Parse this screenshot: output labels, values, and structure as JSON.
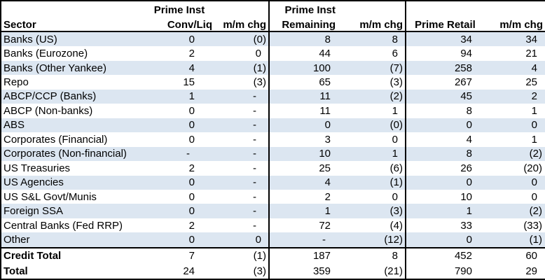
{
  "colors": {
    "stripe": "#dce6f1",
    "border": "#000000",
    "text": "#000000",
    "background": "#ffffff"
  },
  "header": {
    "sector": "Sector",
    "conv_group": "Prime Inst",
    "conv": "Conv/Liq",
    "mm1": "m/m chg",
    "remaining_group": "Prime Inst",
    "remaining": "Remaining",
    "mm2": "m/m chg",
    "retail": "Prime Retail",
    "mm3": "m/m chg"
  },
  "rows": [
    {
      "sector": "Banks (US)",
      "cells": [
        "0",
        "(0)",
        "8",
        "8",
        "34",
        "34"
      ]
    },
    {
      "sector": "Banks (Eurozone)",
      "cells": [
        "2",
        "0",
        "44",
        "6",
        "94",
        "21"
      ]
    },
    {
      "sector": "Banks (Other Yankee)",
      "cells": [
        "4",
        "(1)",
        "100",
        "(7)",
        "258",
        "4"
      ]
    },
    {
      "sector": "Repo",
      "cells": [
        "15",
        "(3)",
        "65",
        "(3)",
        "267",
        "25"
      ]
    },
    {
      "sector": "ABCP/CCP (Banks)",
      "cells": [
        "1",
        "-",
        "11",
        "(2)",
        "45",
        "2"
      ]
    },
    {
      "sector": "ABCP (Non-banks)",
      "cells": [
        "0",
        "-",
        "11",
        "1",
        "8",
        "1"
      ]
    },
    {
      "sector": "ABS",
      "cells": [
        "0",
        "-",
        "0",
        "(0)",
        "0",
        "0"
      ]
    },
    {
      "sector": "Corporates (Financial)",
      "cells": [
        "0",
        "-",
        "3",
        "0",
        "4",
        "1"
      ]
    },
    {
      "sector": "Corporates (Non-financial)",
      "cells": [
        "-",
        "-",
        "10",
        "1",
        "8",
        "(2)"
      ]
    },
    {
      "sector": "US Treasuries",
      "cells": [
        "2",
        "-",
        "25",
        "(6)",
        "26",
        "(20)"
      ]
    },
    {
      "sector": "US Agencies",
      "cells": [
        "0",
        "-",
        "4",
        "(1)",
        "0",
        "0"
      ]
    },
    {
      "sector": "US S&L Govt/Munis",
      "cells": [
        "0",
        "-",
        "2",
        "0",
        "10",
        "0"
      ]
    },
    {
      "sector": "Foreign SSA",
      "cells": [
        "0",
        "-",
        "1",
        "(3)",
        "1",
        "(2)"
      ]
    },
    {
      "sector": "Central Banks (Fed RRP)",
      "cells": [
        "2",
        "-",
        "72",
        "(4)",
        "33",
        "(33)"
      ]
    },
    {
      "sector": "Other",
      "cells": [
        "0",
        "0",
        "-",
        "(12)",
        "0",
        "(1)"
      ]
    }
  ],
  "totals": [
    {
      "sector": "Credit Total",
      "cells": [
        "7",
        "(1)",
        "187",
        "8",
        "452",
        "60"
      ]
    },
    {
      "sector": "Total",
      "cells": [
        "24",
        "(3)",
        "359",
        "(21)",
        "790",
        "29"
      ]
    }
  ],
  "chart_data": {
    "type": "table",
    "columns": [
      "Sector",
      "Prime Inst Conv/Liq",
      "m/m chg",
      "Prime Inst Remaining",
      "m/m chg",
      "Prime Retail",
      "m/m chg"
    ],
    "rows": [
      [
        "Banks (US)",
        0,
        0,
        8,
        8,
        34,
        34
      ],
      [
        "Banks (Eurozone)",
        2,
        0,
        44,
        6,
        94,
        21
      ],
      [
        "Banks (Other Yankee)",
        4,
        -1,
        100,
        -7,
        258,
        4
      ],
      [
        "Repo",
        15,
        -3,
        65,
        -3,
        267,
        25
      ],
      [
        "ABCP/CCP (Banks)",
        1,
        null,
        11,
        -2,
        45,
        2
      ],
      [
        "ABCP (Non-banks)",
        0,
        null,
        11,
        1,
        8,
        1
      ],
      [
        "ABS",
        0,
        null,
        0,
        0,
        0,
        0
      ],
      [
        "Corporates (Financial)",
        0,
        null,
        3,
        0,
        4,
        1
      ],
      [
        "Corporates (Non-financial)",
        null,
        null,
        10,
        1,
        8,
        -2
      ],
      [
        "US Treasuries",
        2,
        null,
        25,
        -6,
        26,
        -20
      ],
      [
        "US Agencies",
        0,
        null,
        4,
        -1,
        0,
        0
      ],
      [
        "US S&L Govt/Munis",
        0,
        null,
        2,
        0,
        10,
        0
      ],
      [
        "Foreign SSA",
        0,
        null,
        1,
        -3,
        1,
        -2
      ],
      [
        "Central Banks (Fed RRP)",
        2,
        null,
        72,
        -4,
        33,
        -33
      ],
      [
        "Other",
        0,
        0,
        null,
        -12,
        0,
        -1
      ],
      [
        "Credit Total",
        7,
        -1,
        187,
        8,
        452,
        60
      ],
      [
        "Total",
        24,
        -3,
        359,
        -21,
        790,
        29
      ]
    ],
    "layout_hints": {
      "negative_values_shown_in_parentheses": true,
      "nil_values_shown_as_dash": true,
      "row_striping": "alternate light blue #dce6f1",
      "section_dividers_after_columns": [
        2,
        4
      ],
      "bold_rows": [
        "Credit Total",
        "Total"
      ]
    }
  }
}
